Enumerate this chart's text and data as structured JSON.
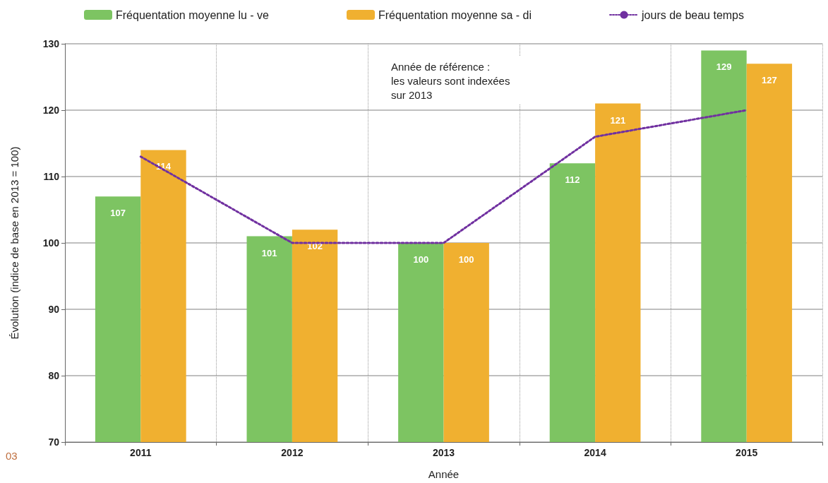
{
  "chart_data": {
    "type": "bar",
    "xlabel": "Année",
    "ylabel": "Évolution (indice de base en 2013 = 100)",
    "categories": [
      "2011",
      "2012",
      "2013",
      "2014",
      "2015"
    ],
    "series": [
      {
        "name": "Fréquentation moyenne lu - ve",
        "color": "#7dc462",
        "values": [
          107,
          101,
          100,
          112,
          129
        ],
        "value_labels": [
          "107",
          "101",
          "100",
          "112",
          "129"
        ]
      },
      {
        "name": "Fréquentation moyenne sa - di",
        "color": "#f0b030",
        "values": [
          114,
          102,
          100,
          121,
          127
        ],
        "value_labels": [
          "114",
          "102",
          "100",
          "121",
          "127"
        ]
      },
      {
        "name": "jours de beau temps",
        "type": "line",
        "color": "#7030a0",
        "line_style": "dotted",
        "marker": "none",
        "values": [
          113,
          100,
          100,
          116,
          120
        ]
      }
    ],
    "ylim": [
      70,
      130
    ],
    "yticks": [
      70,
      80,
      90,
      100,
      110,
      120,
      130
    ],
    "grid": true,
    "legend": "top",
    "annotations": [
      "Année de référence :\nles valeurs sont indexées\nsur 2013",
      "03"
    ]
  }
}
